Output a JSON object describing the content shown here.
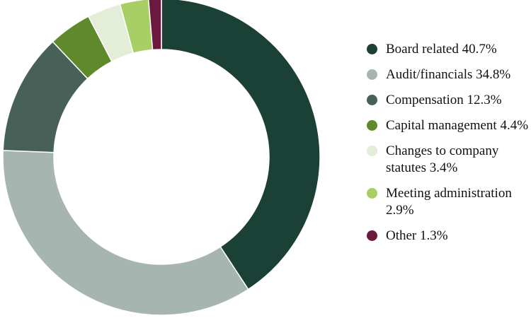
{
  "chart_data": {
    "type": "pie",
    "donut": true,
    "title": "",
    "legend_position": "right",
    "slices": [
      {
        "label": "Board related 40.7%",
        "category": "Board related",
        "value": 40.7,
        "color": "#1b4035"
      },
      {
        "label": "Audit/financials 34.8%",
        "category": "Audit/financials",
        "value": 34.8,
        "color": "#a6b5b0"
      },
      {
        "label": "Compensation 12.3%",
        "category": "Compensation",
        "value": 12.3,
        "color": "#476158"
      },
      {
        "label": "Capital management 4.4%",
        "category": "Capital management",
        "value": 4.4,
        "color": "#5e8a2c"
      },
      {
        "label": "Changes to company statutes 3.4%",
        "category": "Changes to company statutes",
        "value": 3.4,
        "color": "#e3edd7"
      },
      {
        "label": "Meeting administration 2.9%",
        "category": "Meeting administration",
        "value": 2.9,
        "color": "#a8cf66"
      },
      {
        "label": "Other 1.3%",
        "category": "Other",
        "value": 1.3,
        "color": "#6a1a3e"
      }
    ]
  }
}
